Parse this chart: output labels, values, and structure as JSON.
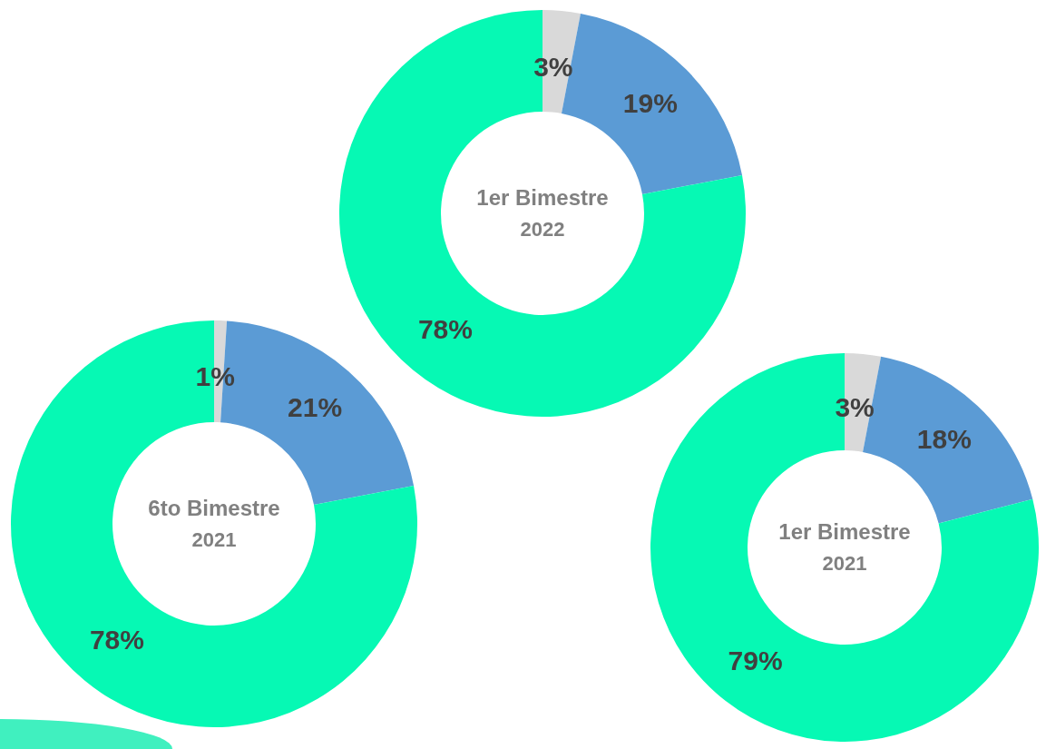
{
  "chart_data": [
    {
      "type": "donut",
      "title": "1er Bimestre",
      "subtitle": "2022",
      "categories": [
        null,
        null,
        null
      ],
      "values": [
        3,
        19,
        78
      ],
      "value_labels": [
        "3%",
        "19%",
        "78%"
      ],
      "colors": [
        "#d9d9d9",
        "#5b9bd5",
        "#06f9b4"
      ],
      "legend": false
    },
    {
      "type": "donut",
      "title": "6to Bimestre",
      "subtitle": "2021",
      "categories": [
        null,
        null,
        null
      ],
      "values": [
        1,
        21,
        78
      ],
      "value_labels": [
        "1%",
        "21%",
        "78%"
      ],
      "colors": [
        "#d9d9d9",
        "#5b9bd5",
        "#06f9b4"
      ],
      "legend": false
    },
    {
      "type": "donut",
      "title": "1er Bimestre",
      "subtitle": "2021",
      "categories": [
        null,
        null,
        null
      ],
      "values": [
        3,
        18,
        79
      ],
      "value_labels": [
        "3%",
        "18%",
        "79%"
      ],
      "colors": [
        "#d9d9d9",
        "#5b9bd5",
        "#06f9b4"
      ],
      "legend": false
    }
  ]
}
